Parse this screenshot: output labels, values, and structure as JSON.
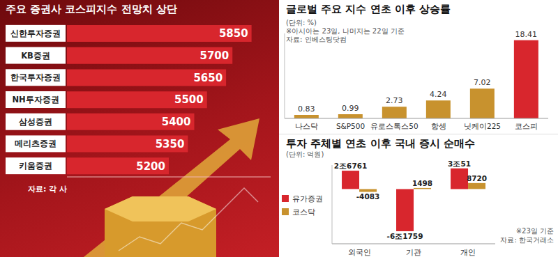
{
  "chart_data": [
    {
      "type": "bar",
      "orientation": "horizontal",
      "title": "주요 증권사 코스피지수 전망치 상단",
      "categories": [
        "신한투자증권",
        "KB증권",
        "한국투자증권",
        "NH투자증권",
        "삼성증권",
        "메리츠증권",
        "키움증권"
      ],
      "values": [
        5850,
        5700,
        5650,
        5500,
        5400,
        5350,
        5200
      ],
      "xlim": [
        4400,
        6000
      ],
      "color": "#d8262d",
      "data_labels": true,
      "tick_labels": "y",
      "annotations": [
        "자료: 각 사"
      ]
    },
    {
      "type": "bar",
      "title": "글로벌 주요 지수 연초 이후 상승률",
      "categories": [
        "나스닥",
        "S&P500",
        "유로스톡스50",
        "항셍",
        "닛케이225",
        "코스피"
      ],
      "values": [
        0.83,
        0.99,
        2.73,
        4.24,
        7.02,
        18.41
      ],
      "colors": [
        "#c8922e",
        "#c8922e",
        "#c8922e",
        "#c8922e",
        "#c8922e",
        "#d8262d"
      ],
      "ylim": [
        0,
        20
      ],
      "data_labels": true,
      "tick_labels": "x",
      "annotations": [
        "(단위: %)",
        "※아시아는 23일, 나머지는 22일 기준",
        "자료: 인베스팅닷컴"
      ]
    },
    {
      "type": "bar",
      "title": "투자 주체별 연초 이후 국내 증시 순매수",
      "categories": [
        "외국인",
        "기관",
        "개인"
      ],
      "series": [
        {
          "name": "유가증권",
          "color": "#d8262d",
          "values": [
            26761,
            -61759,
            30051
          ],
          "value_labels": [
            "2조6761",
            "-6조1759",
            "3조51"
          ]
        },
        {
          "name": "코스닥",
          "color": "#c8922e",
          "values": [
            -4083,
            1498,
            8720
          ]
        }
      ],
      "ylim": [
        -80000,
        35000
      ],
      "data_labels": true,
      "tick_labels": "x",
      "legend": "left",
      "annotations": [
        "(단위: 억원)",
        "※23일 기준",
        "자료: 한국거래소"
      ]
    }
  ]
}
